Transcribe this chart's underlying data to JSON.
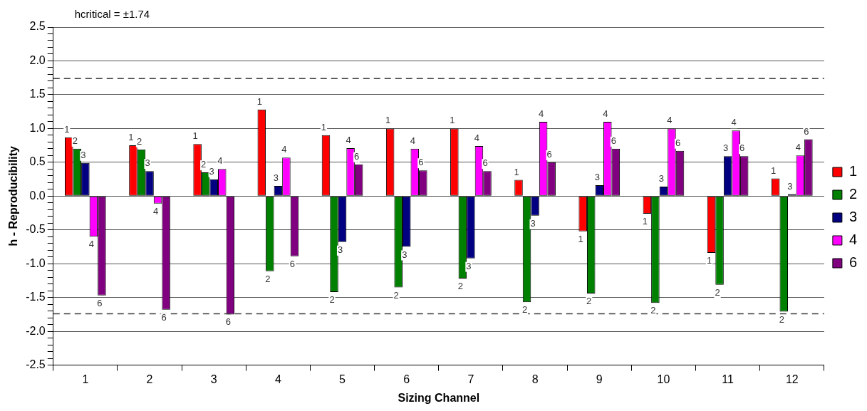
{
  "chart_data": {
    "type": "bar",
    "annotations": [
      "hcritical = ±1.74"
    ],
    "xlabel": "Sizing Channel",
    "ylabel": "h - Reproducibility",
    "categories": [
      "1",
      "2",
      "3",
      "4",
      "5",
      "6",
      "7",
      "8",
      "9",
      "10",
      "11",
      "12"
    ],
    "series": [
      {
        "name": "1",
        "color": "#ff0000",
        "values": [
          0.87,
          0.75,
          0.77,
          1.28,
          0.9,
          1.0,
          1.0,
          0.24,
          -0.52,
          -0.26,
          -0.84,
          0.26
        ]
      },
      {
        "name": "2",
        "color": "#008000",
        "values": [
          0.7,
          0.69,
          0.35,
          -1.11,
          -1.42,
          -1.35,
          -1.22,
          -1.57,
          -1.44,
          -1.58,
          -1.31,
          -1.71
        ]
      },
      {
        "name": "3",
        "color": "#000080",
        "values": [
          0.49,
          0.37,
          0.25,
          0.15,
          -0.68,
          -0.75,
          -0.92,
          -0.29,
          0.16,
          0.14,
          0.59,
          0.03
        ]
      },
      {
        "name": "4",
        "color": "#ff00ff",
        "values": [
          -0.6,
          -0.11,
          0.4,
          0.57,
          0.71,
          0.7,
          0.74,
          1.1,
          1.1,
          1.0,
          0.97,
          0.6
        ]
      },
      {
        "name": "6",
        "color": "#800080",
        "values": [
          -1.47,
          -1.68,
          -1.75,
          -0.89,
          0.47,
          0.38,
          0.37,
          0.5,
          0.7,
          0.67,
          0.59,
          0.84
        ]
      }
    ],
    "ylim": [
      -2.5,
      2.5
    ],
    "yticks": [
      {
        "value": -2.5,
        "label": "-2.5"
      },
      {
        "value": -2.4,
        "label": null
      },
      {
        "value": -2.3,
        "label": null
      },
      {
        "value": -2.2,
        "label": null
      },
      {
        "value": -2.1,
        "label": null
      },
      {
        "value": -2.0,
        "label": "-2.0"
      },
      {
        "value": -1.9,
        "label": null
      },
      {
        "value": -1.8,
        "label": null
      },
      {
        "value": -1.7,
        "label": null
      },
      {
        "value": -1.6,
        "label": null
      },
      {
        "value": -1.5,
        "label": "-1.5"
      },
      {
        "value": -1.4,
        "label": null
      },
      {
        "value": -1.3,
        "label": null
      },
      {
        "value": -1.2,
        "label": null
      },
      {
        "value": -1.1,
        "label": null
      },
      {
        "value": -1.0,
        "label": "-1.0"
      },
      {
        "value": -0.9,
        "label": null
      },
      {
        "value": -0.8,
        "label": null
      },
      {
        "value": -0.7,
        "label": null
      },
      {
        "value": -0.6,
        "label": null
      },
      {
        "value": -0.5,
        "label": "-0.5"
      },
      {
        "value": -0.4,
        "label": null
      },
      {
        "value": -0.3,
        "label": null
      },
      {
        "value": -0.2,
        "label": null
      },
      {
        "value": -0.1,
        "label": null
      },
      {
        "value": 0,
        "label": "0.0"
      },
      {
        "value": 0.1,
        "label": null
      },
      {
        "value": 0.2,
        "label": null
      },
      {
        "value": 0.3,
        "label": null
      },
      {
        "value": 0.4,
        "label": null
      },
      {
        "value": 0.5,
        "label": "0.5"
      },
      {
        "value": 0.6,
        "label": null
      },
      {
        "value": 0.7,
        "label": null
      },
      {
        "value": 0.8,
        "label": null
      },
      {
        "value": 0.9,
        "label": null
      },
      {
        "value": 1.0,
        "label": "1.0"
      },
      {
        "value": 1.1,
        "label": null
      },
      {
        "value": 1.2,
        "label": null
      },
      {
        "value": 1.3,
        "label": null
      },
      {
        "value": 1.4,
        "label": null
      },
      {
        "value": 1.5,
        "label": "1.5"
      },
      {
        "value": 1.6,
        "label": null
      },
      {
        "value": 1.7,
        "label": null
      },
      {
        "value": 1.8,
        "label": null
      },
      {
        "value": 1.9,
        "label": null
      },
      {
        "value": 2.0,
        "label": "2.0"
      },
      {
        "value": 2.1,
        "label": null
      },
      {
        "value": 2.2,
        "label": null
      },
      {
        "value": 2.3,
        "label": null
      },
      {
        "value": 2.4,
        "label": null
      },
      {
        "value": 2.5,
        "label": "2.5"
      }
    ],
    "ref_lines": [
      {
        "axis": "y",
        "value": 1.74,
        "color": "#404040",
        "line_style": "dashed"
      },
      {
        "axis": "y",
        "value": -1.74,
        "color": "#404040",
        "line_style": "dashed"
      }
    ],
    "grid": "y",
    "legend": "right"
  }
}
